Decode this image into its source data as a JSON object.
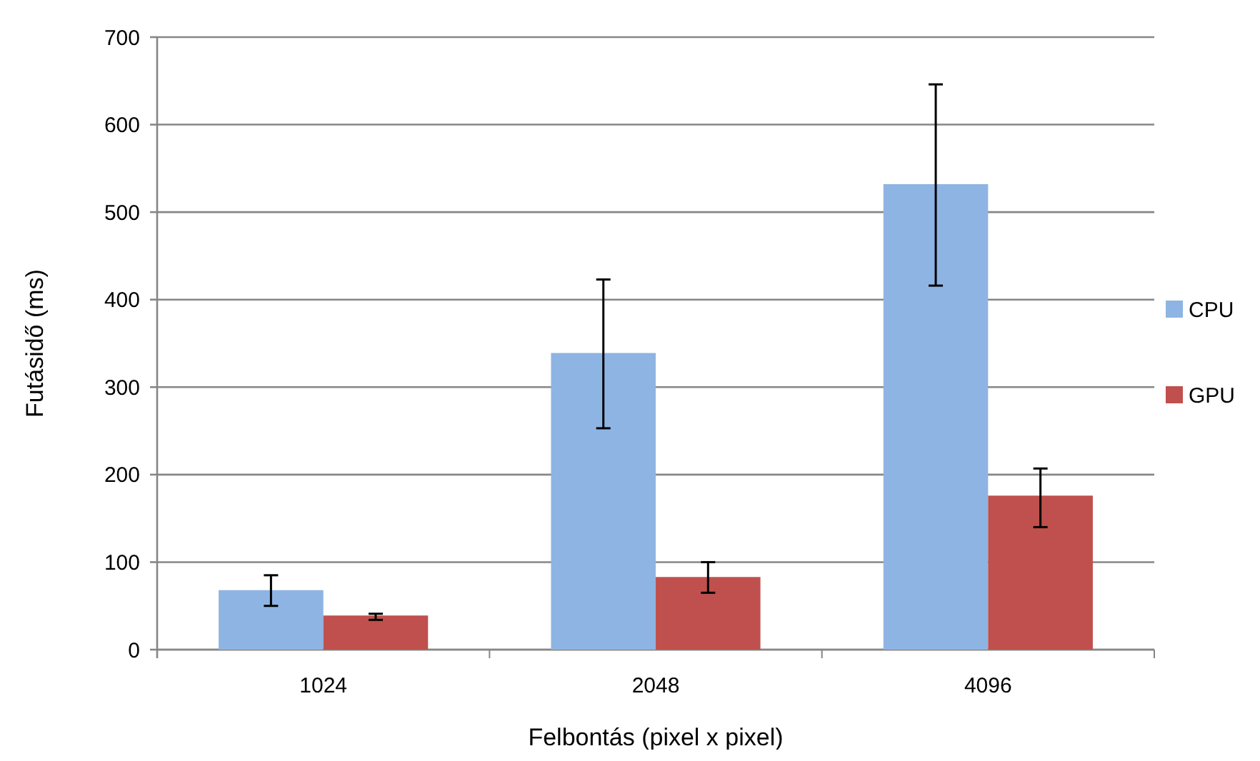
{
  "chart_data": {
    "type": "bar",
    "xlabel": "Felbontás (pixel x pixel)",
    "ylabel": "Futásidő (ms)",
    "categories": [
      "1024",
      "2048",
      "4096"
    ],
    "series": [
      {
        "name": "CPU",
        "color": "#8eb4e3",
        "values": [
          68,
          339,
          532
        ],
        "errors": [
          [
            50,
            85
          ],
          [
            253,
            423
          ],
          [
            416,
            646
          ]
        ]
      },
      {
        "name": "GPU",
        "color": "#c0504d",
        "values": [
          39,
          83,
          176
        ],
        "errors": [
          [
            34,
            41
          ],
          [
            65,
            100
          ],
          [
            140,
            207
          ]
        ]
      }
    ],
    "ylim": [
      0,
      700
    ],
    "yticks": [
      0,
      100,
      200,
      300,
      400,
      500,
      600,
      700
    ],
    "grid": "y",
    "legend": "right"
  }
}
